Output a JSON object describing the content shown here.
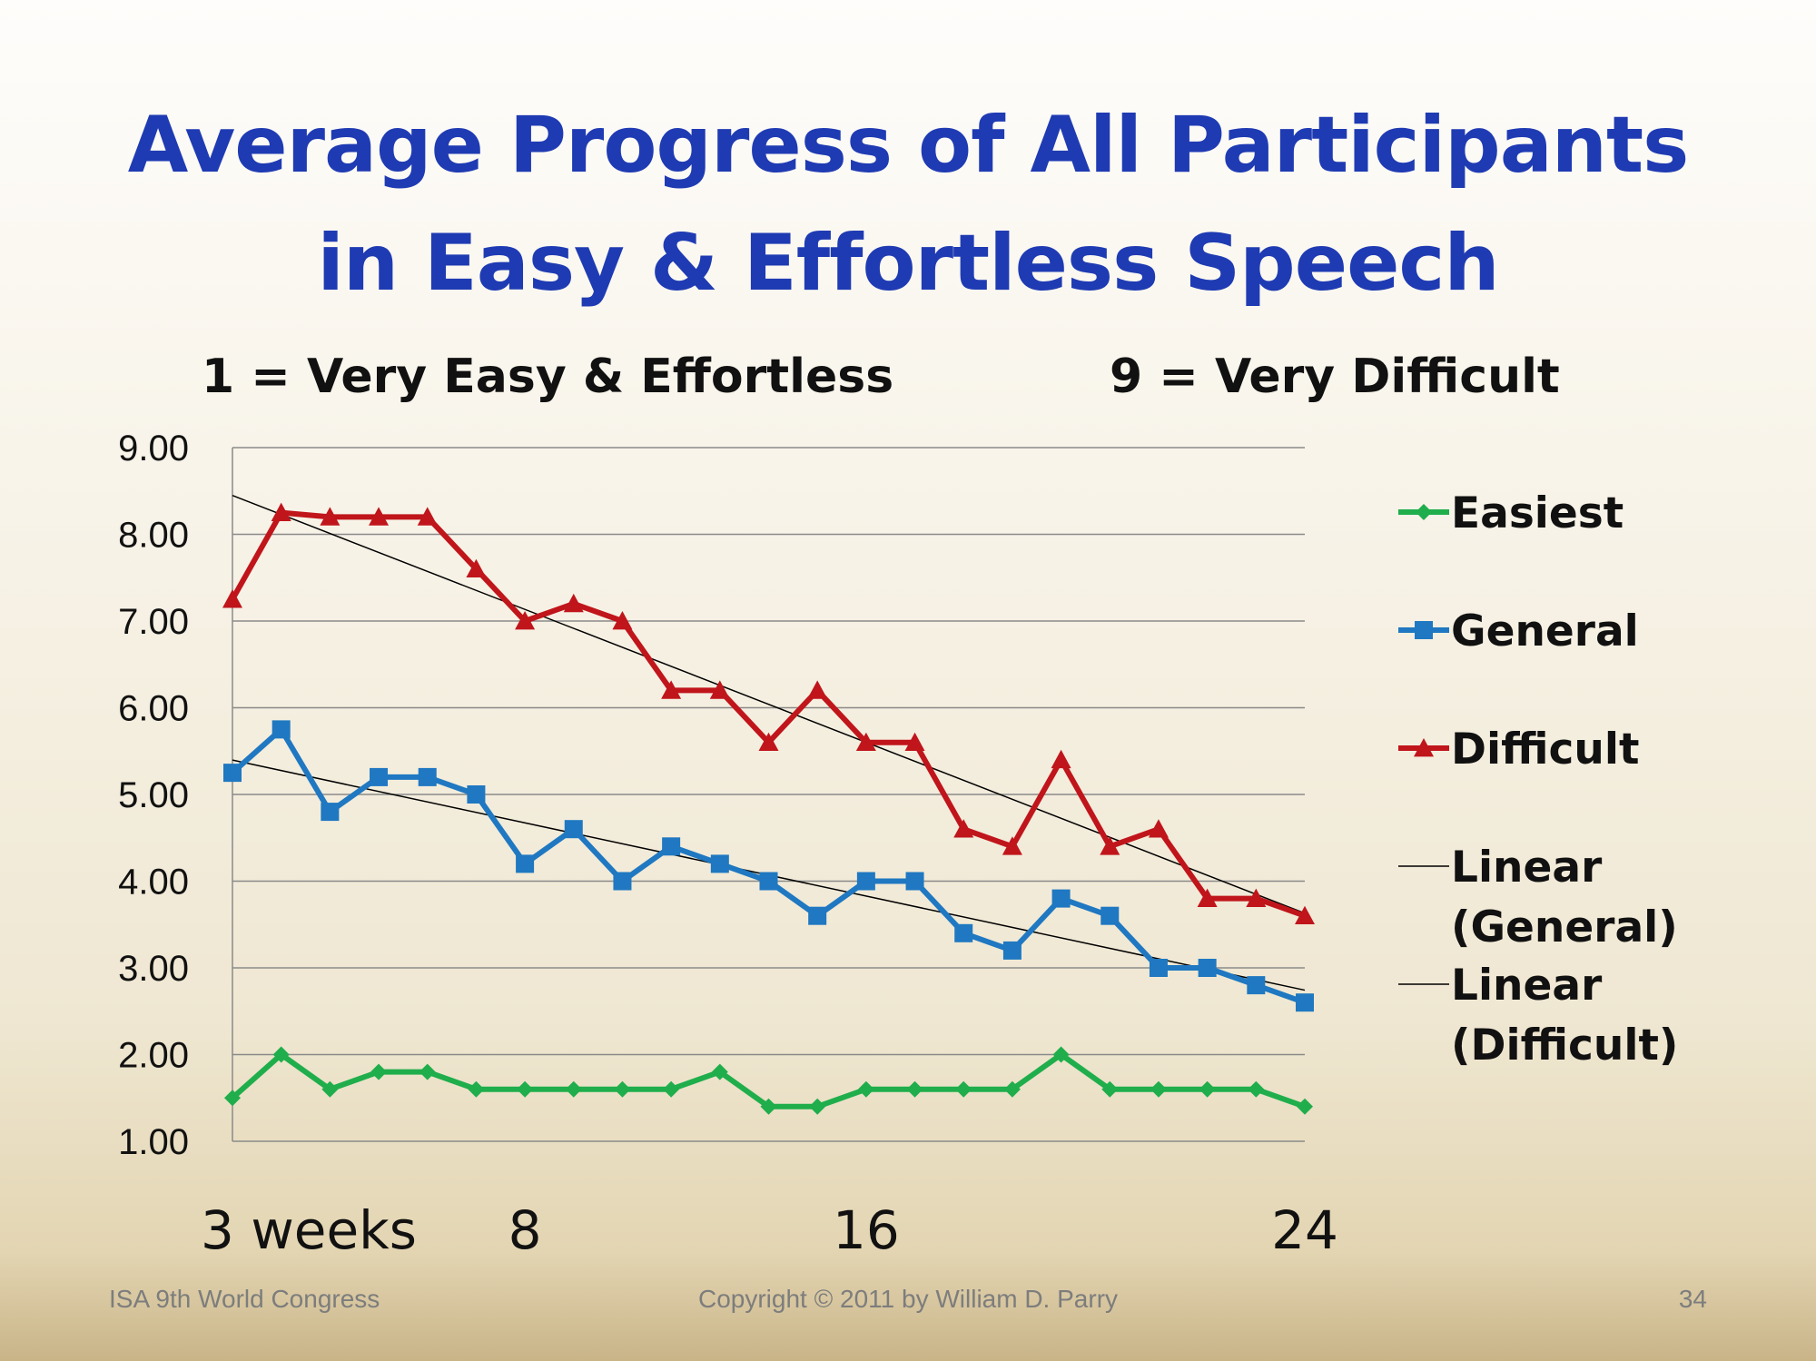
{
  "title_line1": "Average Progress of All Participants",
  "title_line2": "in Easy & Effortless Speech",
  "subtitle_left": "1 = Very Easy & Effortless",
  "subtitle_right": "9 = Very Difficult",
  "footer": {
    "left": "ISA 9th World Congress",
    "center": "Copyright © 2011 by William D. Parry",
    "right": "34"
  },
  "chart_data": {
    "type": "line",
    "x": [
      1,
      2,
      3,
      4,
      5,
      6,
      7,
      8,
      9,
      10,
      11,
      12,
      13,
      14,
      15,
      16,
      17,
      18,
      19,
      20,
      21,
      22,
      23
    ],
    "xticks": [
      {
        "x": 1,
        "label": "3 weeks"
      },
      {
        "x": 7,
        "label": "8"
      },
      {
        "x": 14,
        "label": "16"
      },
      {
        "x": 23,
        "label": "24"
      }
    ],
    "ylim": [
      1,
      9
    ],
    "yticks": [
      "1.00",
      "2.00",
      "3.00",
      "4.00",
      "5.00",
      "6.00",
      "7.00",
      "8.00",
      "9.00"
    ],
    "grid": true,
    "legend_position": "right",
    "series": [
      {
        "name": "Easiest",
        "color": "#1fae4b",
        "marker": "diamond",
        "values": [
          1.5,
          2.0,
          1.6,
          1.8,
          1.8,
          1.6,
          1.6,
          1.6,
          1.6,
          1.6,
          1.8,
          1.4,
          1.4,
          1.6,
          1.6,
          1.6,
          1.6,
          2.0,
          1.6,
          1.6,
          1.6,
          1.6,
          1.4
        ]
      },
      {
        "name": "General",
        "color": "#1f78c1",
        "marker": "square",
        "values": [
          5.25,
          5.75,
          4.8,
          5.2,
          5.2,
          5.0,
          4.2,
          4.6,
          4.0,
          4.4,
          4.2,
          4.0,
          3.6,
          4.0,
          4.0,
          3.4,
          3.2,
          3.8,
          3.6,
          3.0,
          3.0,
          2.8,
          2.6
        ]
      },
      {
        "name": "Difficult",
        "color": "#c0151b",
        "marker": "triangle",
        "values": [
          7.25,
          8.25,
          8.2,
          8.2,
          8.2,
          7.6,
          7.0,
          7.2,
          7.0,
          6.2,
          6.2,
          5.6,
          6.2,
          5.6,
          5.6,
          4.6,
          4.4,
          5.4,
          4.4,
          4.6,
          3.8,
          3.8,
          3.6
        ]
      }
    ],
    "trendlines": [
      {
        "name": "Linear (General)",
        "of": "General",
        "color": "#000000"
      },
      {
        "name": "Linear (Difficult)",
        "of": "Difficult",
        "color": "#000000"
      }
    ]
  }
}
